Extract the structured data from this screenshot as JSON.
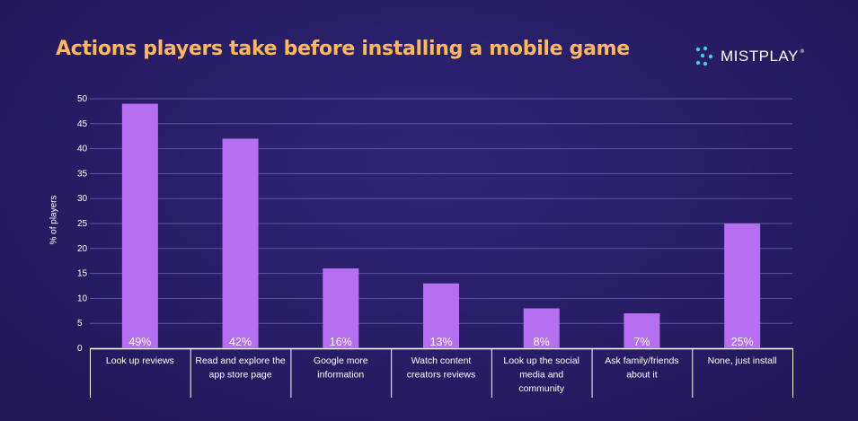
{
  "header": {
    "title": "Actions players take before installing a mobile game",
    "logo_text": "MISTPLAY",
    "logo_reg": "®"
  },
  "colors": {
    "background": "#2a1f6b",
    "title": "#ffb85c",
    "bar": "#b66ff0",
    "grid": "#5c55a0",
    "text": "#ffffff",
    "logo_accent": "#35d6e0"
  },
  "chart_data": {
    "type": "bar",
    "title": "Actions players take before installing a mobile game",
    "xlabel": "",
    "ylabel": "% of players",
    "ylim": [
      0,
      50
    ],
    "yticks": [
      0,
      5,
      10,
      15,
      20,
      25,
      30,
      35,
      40,
      45,
      50
    ],
    "grid": true,
    "categories": [
      "Look up reviews",
      "Read and explore the app store page",
      "Google more information",
      "Watch content creators reviews",
      "Look up the social media and community",
      "Ask family/friends about it",
      "None, just install"
    ],
    "category_lines": [
      [
        "Look up reviews"
      ],
      [
        "Read and explore the",
        "app store page"
      ],
      [
        "Google more",
        "information"
      ],
      [
        "Watch content",
        "creators reviews"
      ],
      [
        "Look up the social",
        "media and",
        "community"
      ],
      [
        "Ask family/friends",
        "about it"
      ],
      [
        "None, just install"
      ]
    ],
    "values": [
      49,
      42,
      16,
      13,
      8,
      7,
      25
    ],
    "data_labels": [
      "49%",
      "42%",
      "16%",
      "13%",
      "8%",
      "7%",
      "25%"
    ]
  }
}
